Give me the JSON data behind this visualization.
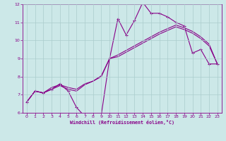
{
  "background_color": "#cce8e8",
  "grid_color": "#aacccc",
  "line_color": "#880088",
  "xlabel": "Windchill (Refroidissement éolien,°C)",
  "xlim": [
    -0.5,
    23.5
  ],
  "ylim": [
    6,
    12
  ],
  "yticks": [
    6,
    7,
    8,
    9,
    10,
    11,
    12
  ],
  "xticks": [
    0,
    1,
    2,
    3,
    4,
    5,
    6,
    7,
    8,
    9,
    10,
    11,
    12,
    13,
    14,
    15,
    16,
    17,
    18,
    19,
    20,
    21,
    22,
    23
  ],
  "series1_x": [
    0,
    1,
    2,
    3,
    4,
    5,
    6,
    7,
    8,
    9,
    10,
    11,
    12,
    13,
    14,
    15,
    16,
    17,
    18,
    19,
    20,
    21,
    22,
    23
  ],
  "series1_y": [
    6.6,
    7.2,
    7.1,
    7.3,
    7.6,
    7.2,
    6.3,
    5.8,
    5.8,
    5.9,
    9.0,
    11.2,
    10.3,
    11.1,
    12.1,
    11.5,
    11.5,
    11.3,
    11.0,
    10.8,
    9.3,
    9.5,
    8.7,
    8.7
  ],
  "series2_x": [
    0,
    1,
    2,
    3,
    4,
    5,
    6,
    7,
    8,
    9,
    10,
    11,
    12,
    13,
    14,
    15,
    16,
    17,
    18,
    19,
    20,
    21,
    22,
    23
  ],
  "series2_y": [
    6.6,
    7.2,
    7.1,
    7.4,
    7.55,
    7.4,
    7.3,
    7.6,
    7.75,
    8.0,
    9.0,
    9.2,
    9.45,
    9.7,
    9.95,
    10.2,
    10.45,
    10.65,
    10.85,
    10.7,
    10.5,
    10.2,
    9.8,
    8.7
  ],
  "series3_x": [
    0,
    1,
    2,
    3,
    4,
    5,
    6,
    7,
    8,
    9,
    10,
    11,
    12,
    13,
    14,
    15,
    16,
    17,
    18,
    19,
    20,
    21,
    22,
    23
  ],
  "series3_y": [
    6.6,
    7.2,
    7.1,
    7.3,
    7.5,
    7.3,
    7.2,
    7.55,
    7.75,
    8.05,
    9.0,
    9.1,
    9.35,
    9.6,
    9.85,
    10.1,
    10.35,
    10.55,
    10.75,
    10.6,
    10.4,
    10.1,
    9.7,
    8.7
  ]
}
